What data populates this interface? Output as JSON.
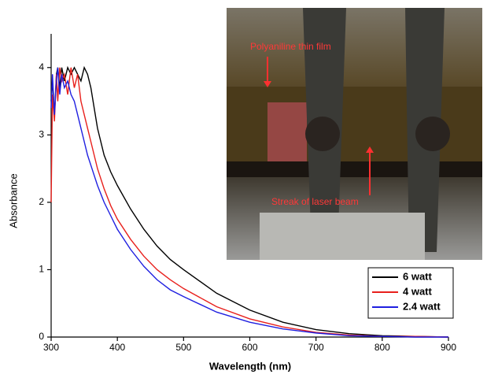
{
  "chart_data": {
    "type": "line",
    "x_label": "Wavelength (nm)",
    "y_label": "Absorbance",
    "xlim": [
      300,
      900
    ],
    "ylim": [
      0,
      4.5
    ],
    "xticks": [
      300,
      400,
      500,
      600,
      700,
      800,
      900
    ],
    "yticks": [
      0,
      1,
      2,
      3,
      4
    ],
    "legend": "lower right",
    "annotations": [
      "Polyaniline thin film",
      "Streak of laser beam"
    ],
    "x": [
      300,
      302,
      305,
      308,
      310,
      313,
      316,
      320,
      325,
      330,
      335,
      340,
      345,
      350,
      355,
      360,
      365,
      370,
      380,
      390,
      400,
      420,
      440,
      460,
      480,
      500,
      550,
      600,
      650,
      700,
      750,
      800,
      850,
      900
    ],
    "series": [
      {
        "name": "6 watt",
        "color": "#000000",
        "values": [
          3.5,
          3.8,
          3.3,
          3.9,
          4.0,
          3.7,
          4.0,
          3.8,
          4.0,
          3.9,
          4.0,
          3.9,
          3.8,
          4.0,
          3.9,
          3.7,
          3.4,
          3.1,
          2.7,
          2.45,
          2.25,
          1.9,
          1.6,
          1.35,
          1.15,
          1.0,
          0.65,
          0.4,
          0.22,
          0.11,
          0.05,
          0.02,
          0.01,
          0
        ]
      },
      {
        "name": "4 watt",
        "color": "#e8201c",
        "values": [
          2.0,
          3.6,
          3.2,
          3.9,
          3.5,
          4.0,
          3.8,
          3.9,
          3.6,
          4.0,
          3.7,
          3.9,
          3.5,
          3.3,
          3.1,
          2.9,
          2.7,
          2.5,
          2.2,
          1.95,
          1.75,
          1.45,
          1.2,
          1.0,
          0.85,
          0.72,
          0.45,
          0.27,
          0.15,
          0.07,
          0.03,
          0.01,
          0.01,
          0
        ]
      },
      {
        "name": "2.4 watt",
        "color": "#1f1fe0",
        "values": [
          3.4,
          3.9,
          3.3,
          3.8,
          4.0,
          3.6,
          3.9,
          3.7,
          3.8,
          3.6,
          3.5,
          3.3,
          3.1,
          2.9,
          2.7,
          2.55,
          2.4,
          2.25,
          2.0,
          1.8,
          1.6,
          1.3,
          1.05,
          0.85,
          0.7,
          0.6,
          0.37,
          0.22,
          0.12,
          0.06,
          0.02,
          0.01,
          0,
          0
        ]
      }
    ]
  }
}
